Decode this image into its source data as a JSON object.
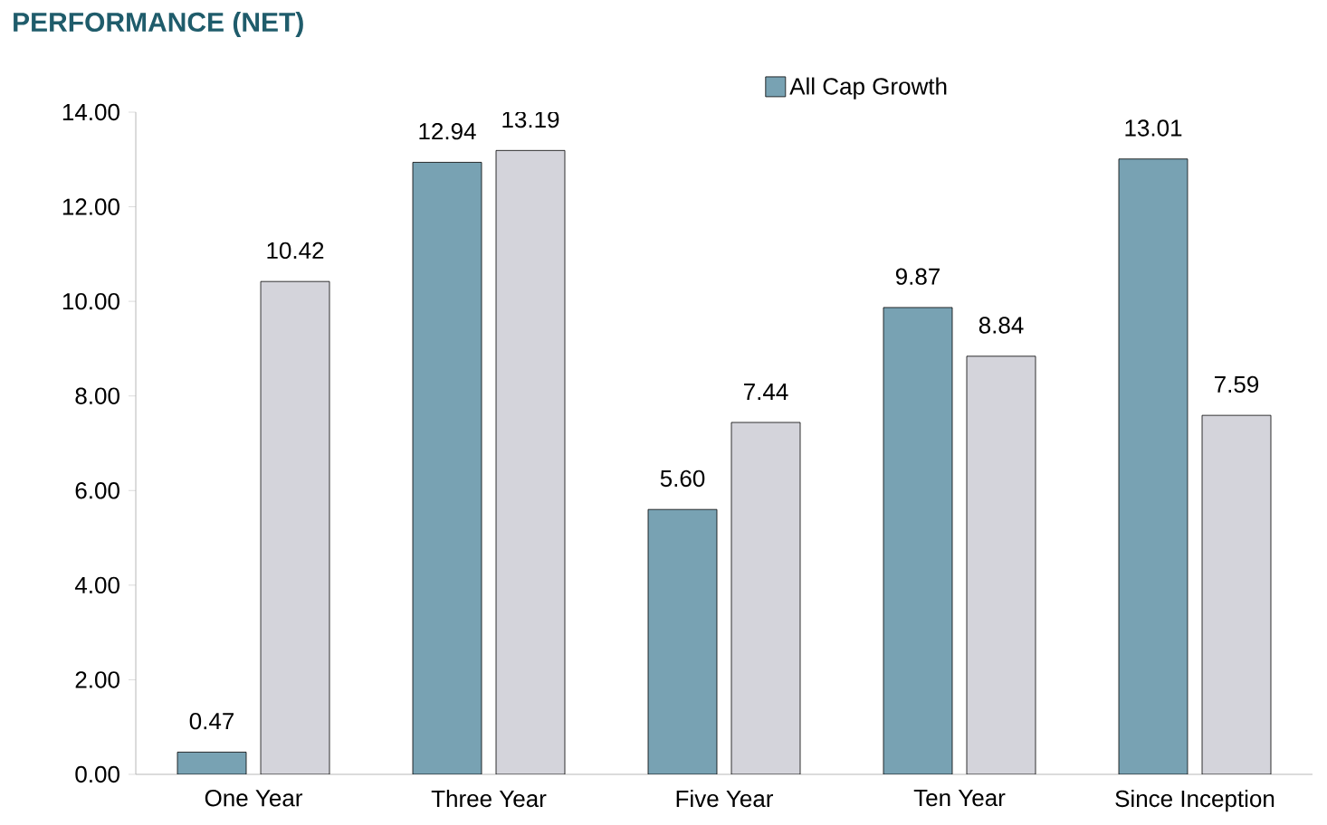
{
  "chart_data": {
    "type": "bar",
    "title": "PERFORMANCE (NET)",
    "categories": [
      "One Year",
      "Three Year",
      "Five Year",
      "Ten Year",
      "Since Inception"
    ],
    "series": [
      {
        "name": "All Cap Growth",
        "color": "#78a2b3",
        "values": [
          0.47,
          12.94,
          5.6,
          9.87,
          13.01
        ],
        "value_labels": [
          "0.47",
          "12.94",
          "5.60",
          "9.87",
          "13.01"
        ]
      },
      {
        "color": "#d4d4db",
        "values": [
          10.42,
          13.19,
          7.44,
          8.84,
          7.59
        ],
        "value_labels": [
          "10.42",
          "13.19",
          "7.44",
          "8.84",
          "7.59"
        ]
      }
    ],
    "ylim": [
      0,
      14
    ],
    "yticks": [
      {
        "value": 0,
        "label": "0.00"
      },
      {
        "value": 2,
        "label": "2.00"
      },
      {
        "value": 4,
        "label": "4.00"
      },
      {
        "value": 6,
        "label": "6.00"
      },
      {
        "value": 8,
        "label": "8.00"
      },
      {
        "value": 10,
        "label": "10.00"
      },
      {
        "value": 12,
        "label": "12.00"
      },
      {
        "value": 14,
        "label": "14.00"
      }
    ],
    "legend": "top right"
  }
}
